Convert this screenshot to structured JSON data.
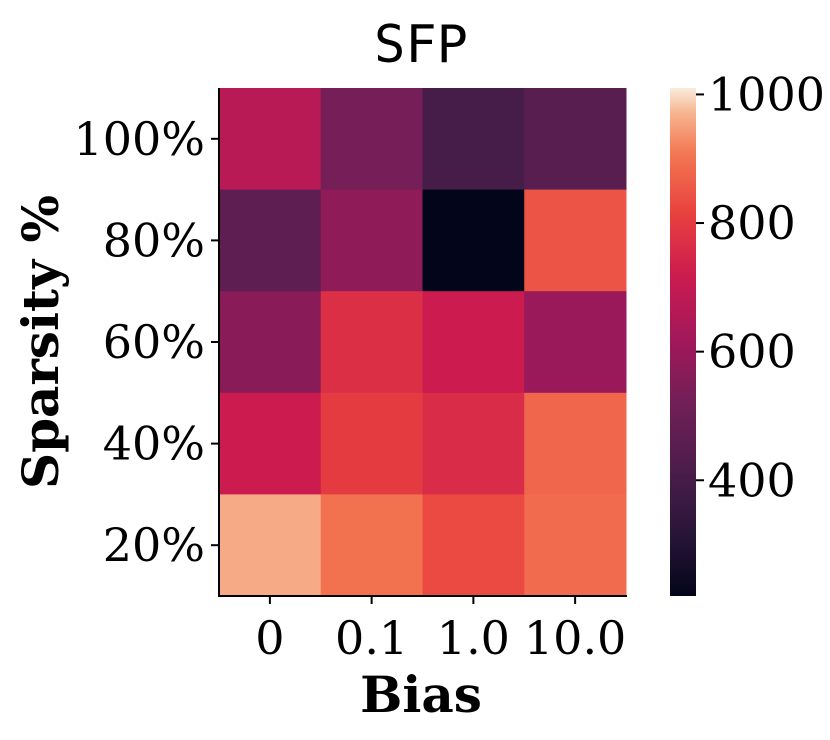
{
  "chart_data": {
    "type": "heatmap",
    "title": "SFP",
    "xlabel": "Bias",
    "ylabel": "Sparsity %",
    "x_categories": [
      "0",
      "0.1",
      "1.0",
      "10.0"
    ],
    "y_categories": [
      "100%",
      "80%",
      "60%",
      "40%",
      "20%"
    ],
    "values": [
      [
        670,
        530,
        400,
        450
      ],
      [
        470,
        580,
        220,
        850
      ],
      [
        570,
        770,
        720,
        600
      ],
      [
        720,
        800,
        760,
        880
      ],
      [
        960,
        900,
        830,
        890
      ]
    ],
    "colorbar": {
      "min": 220,
      "max": 1010,
      "ticks": [
        400,
        600,
        800,
        1000
      ]
    },
    "colormap": "rocket"
  }
}
